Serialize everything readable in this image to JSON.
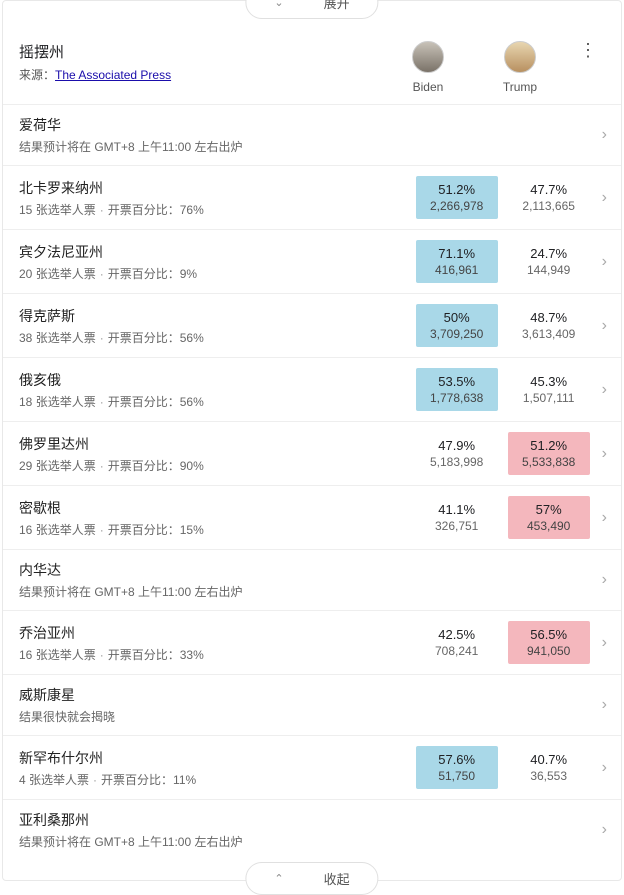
{
  "colors": {
    "highlight_blue": "#a9d8e8",
    "highlight_red": "#f4b7bd",
    "border": "#eeeeee",
    "text_secondary": "#666666",
    "source_link": "#1a0dab"
  },
  "expand_button": {
    "label": "展开",
    "chevron": "⌄"
  },
  "collapse_button": {
    "label": "收起",
    "chevron": "⌃"
  },
  "header": {
    "title": "摇摆州",
    "source_label": "来源：",
    "source_link_text": "The Associated Press"
  },
  "candidates": [
    {
      "id": "biden",
      "name": "Biden",
      "avatar_bg": "linear-gradient(#c8c2b8,#7a7268)"
    },
    {
      "id": "trump",
      "name": "Trump",
      "avatar_bg": "linear-gradient(#e8d6b0,#b89060)"
    }
  ],
  "pending_text_gmt": "结果预计将在 GMT+8 上午11:00 左右出炉",
  "pending_text_soon": "结果很快就会揭晓",
  "sub_labels": {
    "electoral_suffix": " 张选举人票",
    "reporting_prefix": "开票百分比："
  },
  "states": [
    {
      "name": "爱荷华",
      "pending": "gmt"
    },
    {
      "name": "北卡罗来纳州",
      "electoral": 15,
      "reporting": "76%",
      "biden": {
        "pct": "51.2%",
        "votes": "2,266,978",
        "winning": true
      },
      "trump": {
        "pct": "47.7%",
        "votes": "2,113,665",
        "winning": false
      }
    },
    {
      "name": "宾夕法尼亚州",
      "electoral": 20,
      "reporting": "9%",
      "biden": {
        "pct": "71.1%",
        "votes": "416,961",
        "winning": true
      },
      "trump": {
        "pct": "24.7%",
        "votes": "144,949",
        "winning": false
      }
    },
    {
      "name": "得克萨斯",
      "electoral": 38,
      "reporting": "56%",
      "biden": {
        "pct": "50%",
        "votes": "3,709,250",
        "winning": true
      },
      "trump": {
        "pct": "48.7%",
        "votes": "3,613,409",
        "winning": false
      }
    },
    {
      "name": "俄亥俄",
      "electoral": 18,
      "reporting": "56%",
      "biden": {
        "pct": "53.5%",
        "votes": "1,778,638",
        "winning": true
      },
      "trump": {
        "pct": "45.3%",
        "votes": "1,507,111",
        "winning": false
      }
    },
    {
      "name": "佛罗里达州",
      "electoral": 29,
      "reporting": "90%",
      "biden": {
        "pct": "47.9%",
        "votes": "5,183,998",
        "winning": false
      },
      "trump": {
        "pct": "51.2%",
        "votes": "5,533,838",
        "winning": true
      }
    },
    {
      "name": "密歇根",
      "electoral": 16,
      "reporting": "15%",
      "biden": {
        "pct": "41.1%",
        "votes": "326,751",
        "winning": false
      },
      "trump": {
        "pct": "57%",
        "votes": "453,490",
        "winning": true
      }
    },
    {
      "name": "内华达",
      "pending": "gmt"
    },
    {
      "name": "乔治亚州",
      "electoral": 16,
      "reporting": "33%",
      "biden": {
        "pct": "42.5%",
        "votes": "708,241",
        "winning": false
      },
      "trump": {
        "pct": "56.5%",
        "votes": "941,050",
        "winning": true
      }
    },
    {
      "name": "威斯康星",
      "pending": "soon"
    },
    {
      "name": "新罕布什尔州",
      "electoral": 4,
      "reporting": "11%",
      "biden": {
        "pct": "57.6%",
        "votes": "51,750",
        "winning": true
      },
      "trump": {
        "pct": "40.7%",
        "votes": "36,553",
        "winning": false
      }
    },
    {
      "name": "亚利桑那州",
      "pending": "gmt"
    }
  ]
}
